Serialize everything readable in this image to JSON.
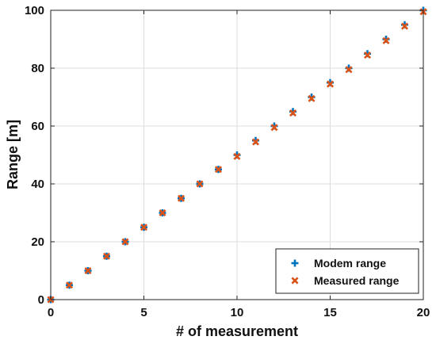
{
  "chart_data": {
    "type": "scatter",
    "title": "",
    "xlabel": "# of measurement",
    "ylabel": "Range [m]",
    "xlim": [
      0,
      20
    ],
    "ylim": [
      0,
      100
    ],
    "xticks": [
      0,
      5,
      10,
      15,
      20
    ],
    "yticks": [
      0,
      20,
      40,
      60,
      80,
      100
    ],
    "grid": true,
    "legend_position": "bottom-right",
    "x": [
      0,
      1,
      2,
      3,
      4,
      5,
      6,
      7,
      8,
      9,
      10,
      11,
      12,
      13,
      14,
      15,
      16,
      17,
      18,
      19,
      20
    ],
    "series": [
      {
        "name": "Modem range",
        "marker": "plus",
        "color": "#0072BD",
        "values": [
          0,
          5,
          10,
          15,
          20,
          25,
          30,
          35,
          40,
          45,
          50,
          55,
          60,
          65,
          70,
          75,
          80,
          85,
          90,
          95,
          100
        ]
      },
      {
        "name": "Measured range",
        "marker": "x",
        "color": "#D95319",
        "values": [
          0,
          5,
          10,
          15,
          20,
          25,
          30,
          35,
          40,
          45,
          49.5,
          54.5,
          59.5,
          64.5,
          69.5,
          74.5,
          79.5,
          84.5,
          89.5,
          94.5,
          99.5
        ]
      }
    ]
  }
}
